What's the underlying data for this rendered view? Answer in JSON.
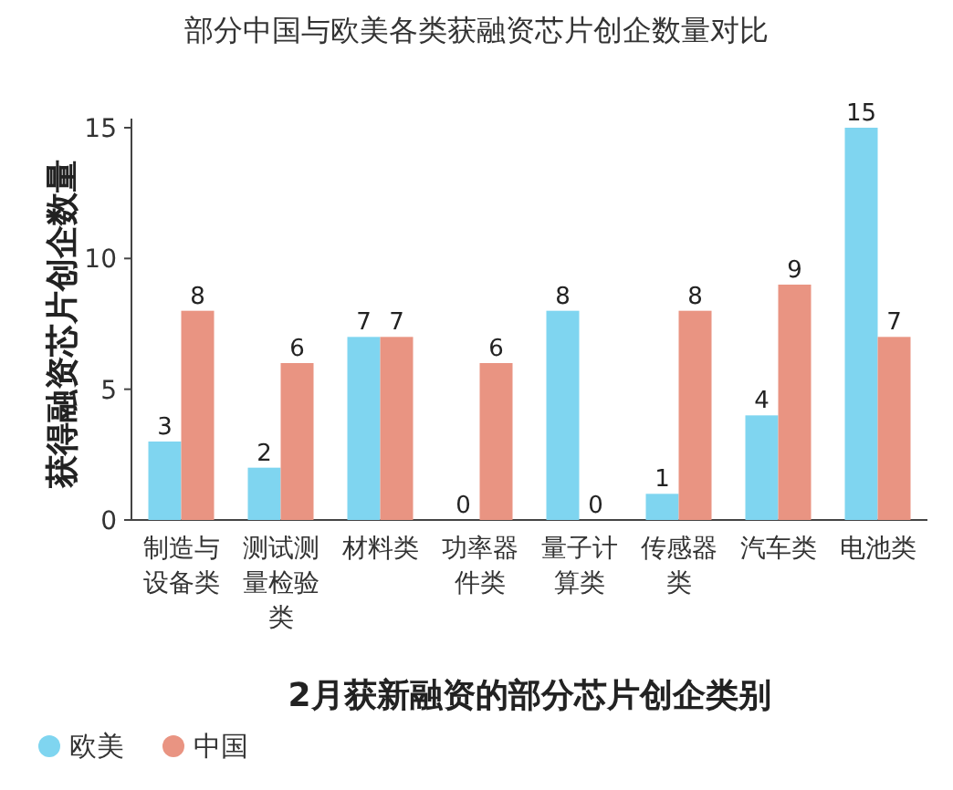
{
  "chart_data": {
    "type": "bar",
    "title": "部分中国与欧美各类获融资芯片创企数量对比",
    "xlabel": "2月获新融资的部分芯片创企类别",
    "ylabel": "获得融资芯片创企数量",
    "categories": [
      "制造与设备类",
      "测试测量检验类",
      "材料类",
      "功率器件类",
      "量子计算类",
      "传感器类",
      "汽车类",
      "电池类"
    ],
    "series": [
      {
        "name": "欧美",
        "color": "#7fd5f0",
        "values": [
          3,
          2,
          7,
          0,
          8,
          1,
          4,
          15
        ]
      },
      {
        "name": "中国",
        "color": "#e99482",
        "values": [
          8,
          6,
          7,
          6,
          0,
          8,
          9,
          7
        ]
      }
    ],
    "ylim": [
      0,
      15
    ],
    "yticks": [
      0,
      5,
      10,
      15
    ],
    "data_labels": true,
    "legend": "bottom left",
    "grid": false
  }
}
